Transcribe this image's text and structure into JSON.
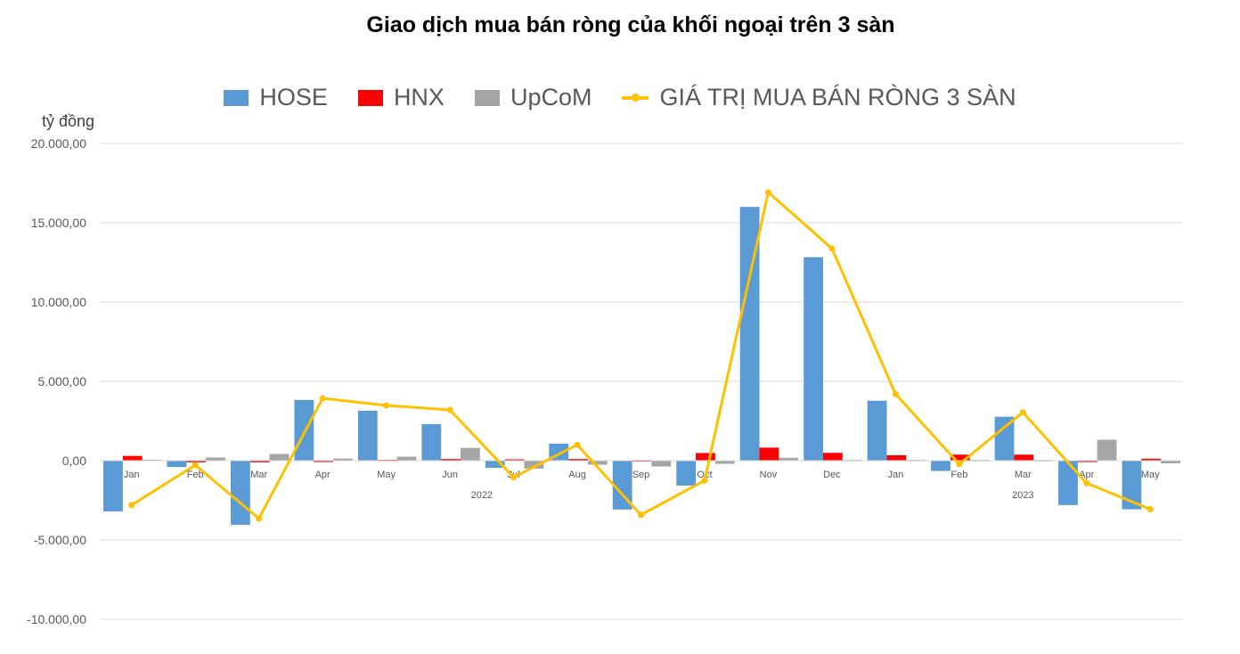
{
  "chart_data": {
    "type": "bar",
    "title": "Giao dịch mua bán ròng của khối ngoại trên 3 sàn",
    "ylabel": "tỷ đồng",
    "xlabel": "",
    "ylim": [
      -10000,
      20000
    ],
    "yticks": [
      "20.000,00",
      "15.000,00",
      "10.000,00",
      "5.000,00",
      "0,00",
      "-5.000,00",
      "-10.000,00"
    ],
    "ytick_values": [
      20000,
      15000,
      10000,
      5000,
      0,
      -5000,
      -10000
    ],
    "grid": true,
    "legend_position": "top",
    "categories": [
      "Jan",
      "Feb",
      "Mar",
      "Apr",
      "May",
      "Jun",
      "Jul",
      "Aug",
      "Sep",
      "Oct",
      "Nov",
      "Dec",
      "Jan",
      "Feb",
      "Mar",
      "Apr",
      "May"
    ],
    "year_groups": [
      {
        "label": "2022",
        "start": 0,
        "end": 11
      },
      {
        "label": "2023",
        "start": 12,
        "end": 16
      }
    ],
    "series": [
      {
        "name": "HOSE",
        "type": "bar",
        "color": "#5B9BD5",
        "values": [
          -3200,
          -400,
          -4050,
          3830,
          3150,
          2300,
          -450,
          1070,
          -3080,
          -1570,
          16000,
          12830,
          3780,
          -650,
          2770,
          -2800,
          -3070
        ]
      },
      {
        "name": "HNX",
        "type": "bar",
        "color": "#FF0000",
        "values": [
          300,
          -100,
          -100,
          -30,
          50,
          100,
          80,
          100,
          30,
          480,
          820,
          490,
          340,
          380,
          380,
          -50,
          120
        ]
      },
      {
        "name": "UpCoM",
        "type": "bar",
        "color": "#A5A5A5",
        "values": [
          60,
          200,
          420,
          130,
          250,
          800,
          -500,
          -250,
          -370,
          -200,
          180,
          50,
          50,
          50,
          40,
          1320,
          -170
        ]
      },
      {
        "name": "GIÁ TRỊ MUA BÁN RÒNG 3 SÀN",
        "type": "line",
        "color": "#FFC000",
        "values": [
          -2800,
          -280,
          -3650,
          3930,
          3480,
          3200,
          -1050,
          1000,
          -3420,
          -1250,
          16920,
          13380,
          4200,
          -220,
          3050,
          -1420,
          -3060
        ]
      }
    ]
  }
}
